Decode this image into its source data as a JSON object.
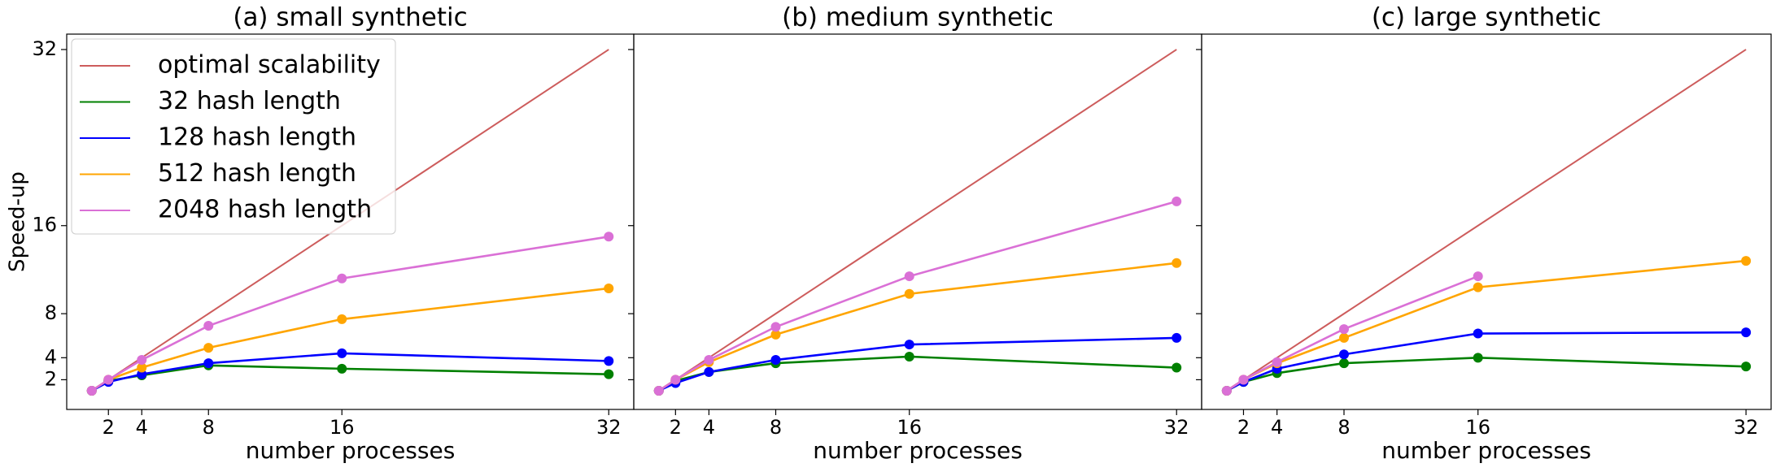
{
  "chart_data": [
    {
      "type": "line",
      "title": "(a) small synthetic",
      "xlabel": "number processes",
      "ylabel": "Speed-up",
      "legend": "upper left",
      "x": [
        1,
        2,
        4,
        8,
        16,
        32
      ],
      "xlim": [
        -0.5,
        33.5
      ],
      "ylim": [
        -0.7,
        33.4
      ],
      "xticks": [
        2,
        4,
        8,
        16,
        32
      ],
      "yticks": [
        2,
        4,
        8,
        16,
        32
      ],
      "tick_labels": true,
      "series": [
        {
          "name": "optimal scalability",
          "color": "#cd5c5c",
          "markers": false,
          "values": [
            1,
            2,
            4,
            8,
            16,
            32
          ]
        },
        {
          "name": "32 hash length",
          "color": "#008000",
          "markers": true,
          "values": [
            1,
            1.9,
            2.4,
            3.3,
            3.0,
            2.5
          ]
        },
        {
          "name": "128 hash length",
          "color": "#0000ff",
          "markers": true,
          "values": [
            1,
            1.8,
            2.5,
            3.5,
            4.4,
            3.7
          ]
        },
        {
          "name": "512 hash length",
          "color": "#ffa500",
          "markers": true,
          "values": [
            1,
            2,
            3.1,
            4.9,
            7.5,
            10.3
          ]
        },
        {
          "name": "2048 hash length",
          "color": "#da70d6",
          "markers": true,
          "values": [
            1,
            2,
            3.8,
            6.9,
            11.2,
            15.0
          ]
        }
      ]
    },
    {
      "type": "line",
      "title": "(b) medium synthetic",
      "xlabel": "number processes",
      "x": [
        1,
        2,
        4,
        8,
        16,
        32
      ],
      "xlim": [
        -0.5,
        33.5
      ],
      "ylim": [
        -0.7,
        33.4
      ],
      "xticks": [
        2,
        4,
        8,
        16,
        32
      ],
      "yticks": [
        2,
        4,
        8,
        16,
        32
      ],
      "tick_labels": false,
      "series": [
        {
          "color": "#cd5c5c",
          "markers": false,
          "values": [
            1,
            2,
            4,
            8,
            16,
            32
          ]
        },
        {
          "color": "#008000",
          "markers": true,
          "values": [
            1,
            1.9,
            2.7,
            3.5,
            4.1,
            3.1
          ]
        },
        {
          "color": "#0000ff",
          "markers": true,
          "values": [
            1,
            1.7,
            2.7,
            3.8,
            5.2,
            5.8
          ]
        },
        {
          "color": "#ffa500",
          "markers": true,
          "values": [
            1,
            2,
            3.6,
            6.1,
            9.8,
            12.6
          ]
        },
        {
          "color": "#da70d6",
          "markers": true,
          "values": [
            1,
            2,
            3.8,
            6.8,
            11.4,
            18.2
          ]
        }
      ]
    },
    {
      "type": "line",
      "title": "(c) large synthetic",
      "xlabel": "number processes",
      "x": [
        1,
        2,
        4,
        8,
        16,
        32
      ],
      "xlim": [
        -0.5,
        33.5
      ],
      "ylim": [
        -0.7,
        33.4
      ],
      "xticks": [
        2,
        4,
        8,
        16,
        32
      ],
      "yticks": [
        2,
        4,
        8,
        16,
        32
      ],
      "tick_labels": false,
      "series": [
        {
          "color": "#cd5c5c",
          "markers": false,
          "values": [
            1,
            2,
            4,
            8,
            16,
            32
          ]
        },
        {
          "color": "#008000",
          "markers": true,
          "values": [
            1,
            1.8,
            2.6,
            3.5,
            4.0,
            3.2
          ]
        },
        {
          "color": "#0000ff",
          "markers": true,
          "values": [
            1,
            1.8,
            3.0,
            4.3,
            6.2,
            6.3
          ]
        },
        {
          "color": "#ffa500",
          "markers": true,
          "values": [
            1,
            2,
            3.5,
            5.8,
            10.4,
            12.8
          ]
        },
        {
          "color": "#da70d6",
          "markers": true,
          "values": [
            1,
            2,
            3.6,
            6.6,
            11.4,
            null
          ]
        }
      ]
    }
  ]
}
